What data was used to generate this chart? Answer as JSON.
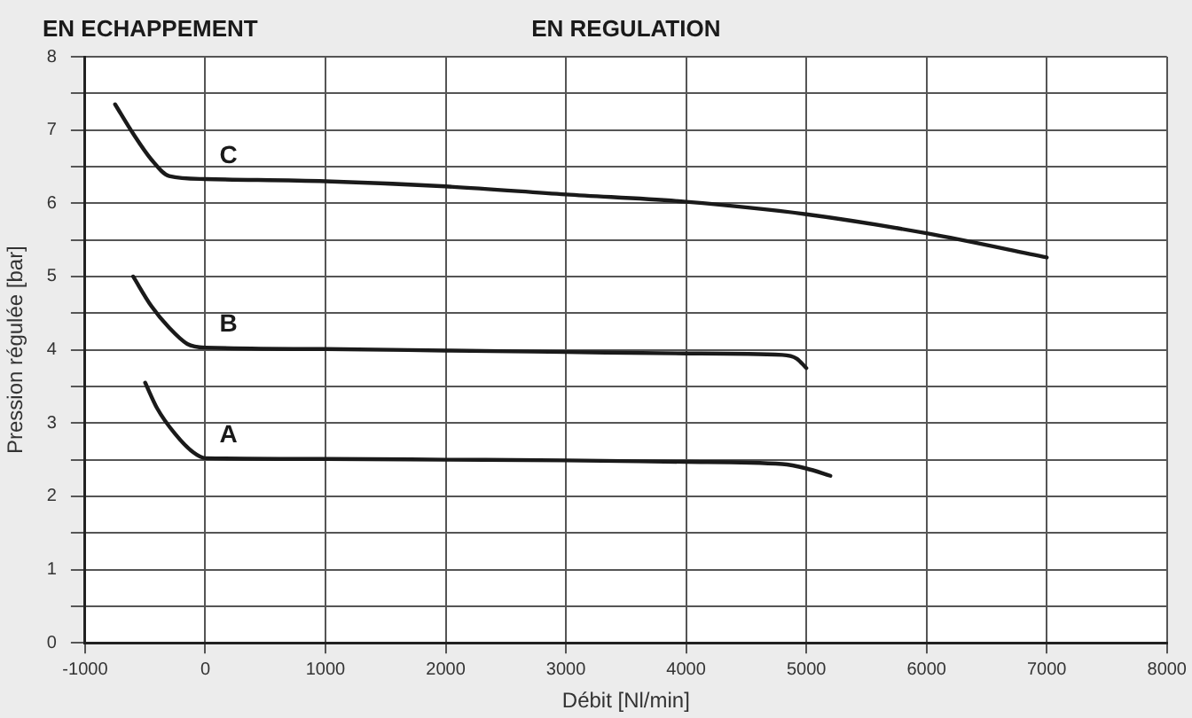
{
  "chart_data": {
    "type": "line",
    "xlabel": "Débit [Nl/min]",
    "ylabel": "Pression régulée [bar]",
    "annotations": [
      "EN ECHAPPEMENT",
      "EN REGULATION"
    ],
    "xlim": [
      -1000,
      8000
    ],
    "xticks": [
      -1000,
      0,
      1000,
      2000,
      3000,
      4000,
      5000,
      6000,
      7000,
      8000
    ],
    "ylim": [
      0,
      8
    ],
    "yticks": [
      0,
      {
        "value": 0.5,
        "label": null
      },
      1,
      {
        "value": 1.5,
        "label": null
      },
      2,
      {
        "value": 2.5,
        "label": null
      },
      3,
      {
        "value": 3.5,
        "label": null
      },
      4,
      {
        "value": 4.5,
        "label": null
      },
      5,
      {
        "value": 5.5,
        "label": null
      },
      6,
      {
        "value": 6.5,
        "label": null
      },
      7,
      {
        "value": 7.5,
        "label": null
      },
      8
    ],
    "grid": true,
    "legend": false,
    "marker": "none",
    "line_style": "solid",
    "series": [
      {
        "name": "C",
        "color": "#1a1a1a",
        "x": [
          -750,
          -600,
          -450,
          -300,
          0,
          1000,
          2000,
          3000,
          4000,
          5000,
          6000,
          7000
        ],
        "values": [
          7.35,
          6.95,
          6.6,
          6.37,
          6.33,
          6.3,
          6.23,
          6.12,
          6.02,
          5.85,
          5.59,
          5.26
        ]
      },
      {
        "name": "B",
        "color": "#1a1a1a",
        "x": [
          -600,
          -450,
          -300,
          -150,
          0,
          1000,
          2000,
          3000,
          4000,
          4800,
          4920,
          5000
        ],
        "values": [
          5.0,
          4.6,
          4.3,
          4.08,
          4.03,
          4.01,
          3.99,
          3.97,
          3.95,
          3.93,
          3.88,
          3.75
        ]
      },
      {
        "name": "A",
        "color": "#1a1a1a",
        "x": [
          -500,
          -400,
          -250,
          -100,
          0,
          1000,
          2000,
          3000,
          4000,
          4800,
          5000,
          5200
        ],
        "values": [
          3.55,
          3.2,
          2.85,
          2.6,
          2.52,
          2.51,
          2.5,
          2.49,
          2.47,
          2.44,
          2.38,
          2.28
        ]
      }
    ]
  }
}
